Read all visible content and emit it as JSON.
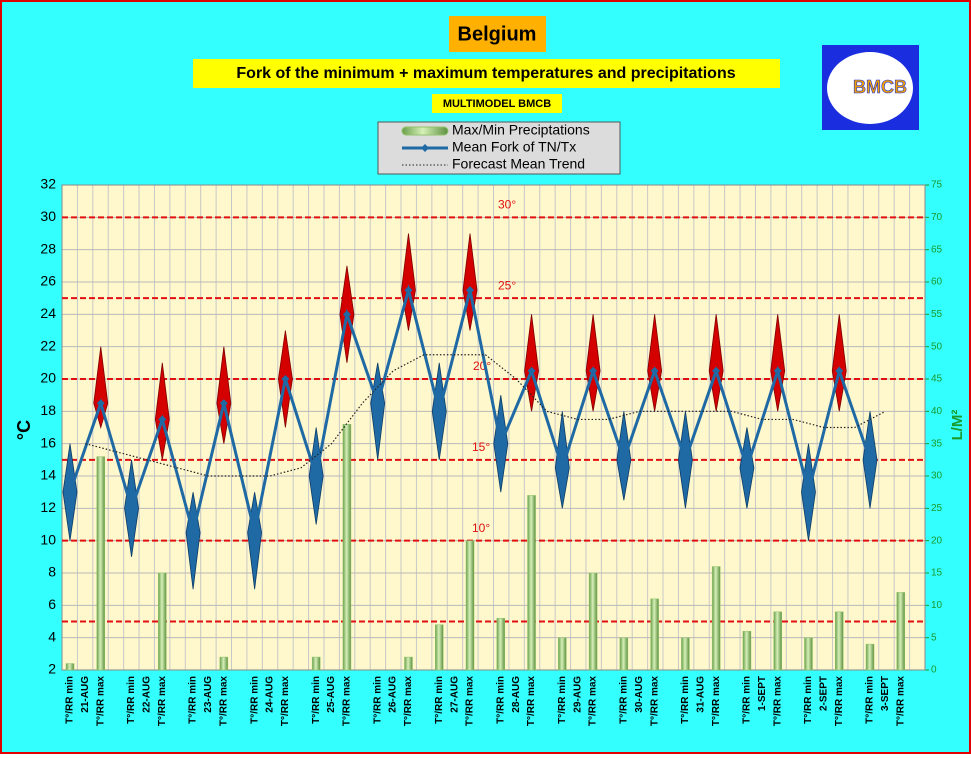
{
  "chart_data": {
    "type": "fork",
    "title": "Belgium",
    "subtitle": "Fork of the minimum + maximum temperatures and precipitations",
    "source": "MULTIMODEL BMCB",
    "logo_text": "BMCB",
    "ylabel": "°C",
    "y2label": "L/M²",
    "categories": [
      "T°/RR min",
      "T°/RR max",
      "T°/RR min",
      "T°/RR max",
      "T°/RR min",
      "T°/RR max",
      "T°/RR min",
      "T°/RR max",
      "T°/RR min",
      "T°/RR max",
      "T°/RR min",
      "T°/RR max",
      "T°/RR min",
      "T°/RR max",
      "T°/RR min",
      "T°/RR max",
      "T°/RR min",
      "T°/RR max",
      "T°/RR min",
      "T°/RR max",
      "T°/RR min",
      "T°/RR max",
      "T°/RR min",
      "T°/RR max",
      "T°/RR min",
      "T°/RR max",
      "T°/RR min",
      "T°/RR max"
    ],
    "dates": [
      "21-AUG",
      "22-AUG",
      "23-AUG",
      "24-AUG",
      "25-AUG",
      "26-AUG",
      "27-AUG",
      "28-AUG",
      "29-AUG",
      "30-AUG",
      "31-AUG",
      "1-SEPT",
      "2-SEPT",
      "3-SEPT"
    ],
    "series": [
      {
        "name": "Max/Min Preciptations",
        "type": "bar",
        "axis": "y2",
        "color": "#8fc46a",
        "values": [
          1,
          33,
          0,
          15,
          0,
          2,
          0,
          0,
          2,
          38,
          0,
          2,
          7,
          20,
          8,
          27,
          5,
          15,
          5,
          11,
          5,
          16,
          6,
          9,
          5,
          9,
          4,
          12
        ]
      },
      {
        "name": "Mean Fork of TN/Tx",
        "type": "line",
        "color": "#1f6aa5",
        "values": [
          13,
          18.5,
          12,
          17.5,
          10.5,
          18.5,
          10.5,
          20,
          14,
          24,
          18.5,
          25.5,
          18,
          25.5,
          16,
          20.5,
          14.5,
          20.5,
          15,
          20.5,
          15,
          20.5,
          14.5,
          20.5,
          13,
          20.5,
          15,
          null
        ]
      },
      {
        "name": "Forecast Mean Trend",
        "type": "trend",
        "color": "#222222",
        "values": [
          16,
          15.5,
          15,
          14.5,
          14,
          14,
          14,
          14.5,
          16,
          18.5,
          20.5,
          21.5,
          21.5,
          21.5,
          20,
          18,
          17.5,
          17.5,
          18,
          18,
          18,
          18,
          17.5,
          17.5,
          17,
          17,
          18,
          null
        ]
      }
    ],
    "forks": {
      "min_color": "#1f6aa5",
      "max_color": "#d40000",
      "low": [
        10,
        17,
        9,
        15,
        7,
        16,
        7,
        17,
        11,
        21,
        15,
        23,
        15,
        23,
        13,
        18,
        12,
        18,
        12.5,
        18,
        12,
        18,
        12,
        18,
        10,
        18,
        12,
        null
      ],
      "high": [
        16,
        22,
        15,
        21,
        13,
        22,
        13,
        23,
        17,
        27,
        21,
        29,
        21,
        29,
        19,
        24,
        18,
        24,
        18,
        24,
        18,
        24,
        17,
        24,
        16,
        24,
        18,
        null
      ]
    },
    "ref_lines": {
      "color": "#e01010",
      "lines": [
        {
          "value": 30,
          "label": "30°"
        },
        {
          "value": 25,
          "label": "25°"
        },
        {
          "value": 20,
          "label": "20°"
        },
        {
          "value": 15,
          "label": "15°"
        },
        {
          "value": 10,
          "label": "10°"
        },
        {
          "value": 5
        }
      ]
    },
    "ylim": [
      2,
      32
    ],
    "yticks": [
      2,
      4,
      6,
      8,
      10,
      12,
      14,
      16,
      18,
      20,
      22,
      24,
      26,
      28,
      30,
      32
    ],
    "y2lim": [
      0,
      75
    ],
    "y2ticks": [
      0,
      5,
      10,
      15,
      20,
      25,
      30,
      35,
      40,
      45,
      50,
      55,
      60,
      65,
      70,
      75
    ],
    "grid": true
  }
}
